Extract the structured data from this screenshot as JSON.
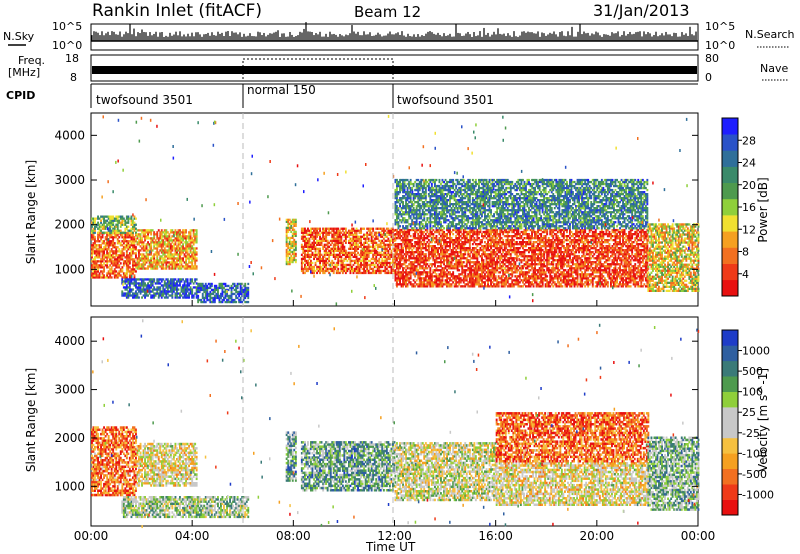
{
  "header": {
    "title": "Rankin Inlet (fitACF)",
    "beam": "Beam 12",
    "date": "31/Jan/2013"
  },
  "status_panels": {
    "nsky_label": "N.Sky",
    "nsky_ticks": [
      "10^5",
      "10^0"
    ],
    "nsearch_label": "N.Search",
    "freq_label": "Freq.",
    "freq_unit": "[MHz]",
    "freq_ticks": [
      "18",
      "8"
    ],
    "nave_label": "Nave",
    "nave_ticks": [
      "80",
      "0"
    ],
    "cpid_label": "CPID",
    "cpid_segments": [
      {
        "label": "twofsound 3501",
        "start_hour": 0,
        "end_hour": 6
      },
      {
        "label": "normal 150",
        "start_hour": 6,
        "end_hour": 12
      },
      {
        "label": "twofsound 3501",
        "start_hour": 12,
        "end_hour": 24
      }
    ]
  },
  "chart_data": [
    {
      "type": "heatmap",
      "panel": "power",
      "ylabel": "Slant Range [km]",
      "xlabel": "",
      "x_range_hours": [
        0,
        24
      ],
      "ylim": [
        180,
        4500
      ],
      "y_ticks": [
        "1000",
        "2000",
        "3000",
        "4000"
      ],
      "colorbar_label": "Power [dB]",
      "colorbar_ticks": [
        "4",
        "8",
        "12",
        "16",
        "20",
        "24",
        "28"
      ],
      "colorbar_colors": [
        "#1e1eff",
        "#2a52c8",
        "#2f6f9a",
        "#3a8a6a",
        "#4e9a4e",
        "#8fcf3a",
        "#f0e030",
        "#f5a020",
        "#f27020",
        "#ef3a18",
        "#e81010"
      ],
      "blocks": [
        {
          "t0": 0.0,
          "t1": 1.8,
          "r0": 800,
          "r1": 1800,
          "level": 0.8
        },
        {
          "t0": 0.0,
          "t1": 1.8,
          "r0": 1800,
          "r1": 2200,
          "level": 0.45
        },
        {
          "t0": 1.8,
          "t1": 4.2,
          "r0": 1000,
          "r1": 1900,
          "level": 0.7
        },
        {
          "t0": 1.2,
          "t1": 4.2,
          "r0": 350,
          "r1": 800,
          "level": 0.2
        },
        {
          "t0": 4.2,
          "t1": 6.2,
          "r0": 250,
          "r1": 700,
          "level": 0.2
        },
        {
          "t0": 7.7,
          "t1": 8.1,
          "r0": 1100,
          "r1": 2100,
          "level": 0.6
        },
        {
          "t0": 8.3,
          "t1": 12.0,
          "r0": 900,
          "r1": 1900,
          "level": 0.82
        },
        {
          "t0": 12.0,
          "t1": 22.0,
          "r0": 600,
          "r1": 1900,
          "level": 0.88
        },
        {
          "t0": 12.0,
          "t1": 22.0,
          "r0": 1900,
          "r1": 3000,
          "level": 0.3
        },
        {
          "t0": 22.0,
          "t1": 24.0,
          "r0": 500,
          "r1": 2000,
          "level": 0.6
        }
      ]
    },
    {
      "type": "heatmap",
      "panel": "velocity",
      "ylabel": "Slant Range [km]",
      "xlabel": "Time UT",
      "x_range_hours": [
        0,
        24
      ],
      "x_ticks": [
        "00:00",
        "04:00",
        "08:00",
        "12:00",
        "16:00",
        "20:00",
        "00:00"
      ],
      "ylim": [
        180,
        4500
      ],
      "y_ticks": [
        "1000",
        "2000",
        "3000",
        "4000"
      ],
      "colorbar_label": "Velocity [m s^-1]",
      "colorbar_ticks": [
        "1000",
        "500",
        "100",
        "25",
        "-25",
        "-100",
        "-500",
        "-1000"
      ],
      "colorbar_colors": [
        "#1e3cc8",
        "#2f5fa0",
        "#3a7a78",
        "#4e9a4e",
        "#8fcf3a",
        "#c8c8c8",
        "#c8c8c8",
        "#f5c040",
        "#f5a020",
        "#f27020",
        "#ef3a18",
        "#e81010"
      ],
      "blocks": [
        {
          "t0": 0.0,
          "t1": 1.8,
          "r0": 800,
          "r1": 2200,
          "level": 0.8
        },
        {
          "t0": 1.8,
          "t1": 4.2,
          "r0": 1000,
          "r1": 1900,
          "level": 0.55
        },
        {
          "t0": 1.2,
          "t1": 6.2,
          "r0": 350,
          "r1": 800,
          "level": 0.4
        },
        {
          "t0": 7.7,
          "t1": 8.1,
          "r0": 1100,
          "r1": 2100,
          "level": 0.3
        },
        {
          "t0": 8.3,
          "t1": 12.0,
          "r0": 900,
          "r1": 1900,
          "level": 0.3
        },
        {
          "t0": 12.0,
          "t1": 16.0,
          "r0": 700,
          "r1": 1900,
          "level": 0.5
        },
        {
          "t0": 16.0,
          "t1": 22.0,
          "r0": 600,
          "r1": 1500,
          "level": 0.55
        },
        {
          "t0": 16.0,
          "t1": 22.0,
          "r0": 1500,
          "r1": 2500,
          "level": 0.82
        },
        {
          "t0": 22.0,
          "t1": 24.0,
          "r0": 500,
          "r1": 2000,
          "level": 0.35
        }
      ]
    }
  ]
}
